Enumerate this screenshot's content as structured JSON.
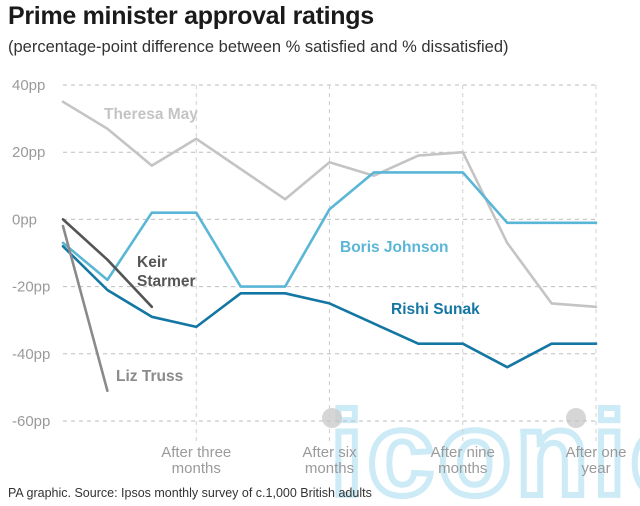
{
  "header": {
    "title": "Prime minister approval ratings",
    "subtitle": "(percentage-point difference between % satisfied and % dissatisfied)"
  },
  "footer": {
    "source": "PA graphic. Source: Ipsos monthly survey of c.1,000 British adults"
  },
  "watermark": {
    "text": "iconic"
  },
  "chart_data": {
    "type": "line",
    "title": "Prime minister approval ratings",
    "subtitle": "(percentage-point difference between % satisfied and % dissatisfied)",
    "ylim": [
      -60,
      40
    ],
    "xlim": [
      0,
      12
    ],
    "yticks": [
      40,
      20,
      0,
      -20,
      -40,
      -60
    ],
    "ytick_labels": [
      "40pp",
      "20pp",
      "0pp",
      "-20pp",
      "-40pp",
      "-60pp"
    ],
    "xticks": [
      {
        "x": 3,
        "lines": [
          "After three",
          "months"
        ]
      },
      {
        "x": 6,
        "lines": [
          "After six",
          "months"
        ]
      },
      {
        "x": 9,
        "lines": [
          "After nine",
          "months"
        ]
      },
      {
        "x": 12,
        "lines": [
          "After one",
          "year"
        ]
      }
    ],
    "grid": true,
    "legend": "inline labels",
    "series": [
      {
        "name": "Theresa May",
        "color": "#c4c4c4",
        "x": [
          0,
          1,
          2,
          3,
          4,
          5,
          6,
          7,
          8,
          9,
          10,
          11,
          12
        ],
        "y": [
          35,
          27,
          16,
          24,
          15,
          6,
          17,
          13,
          19,
          20,
          -7,
          -25,
          -26
        ]
      },
      {
        "name": "Boris Johnson",
        "color": "#5ab6d7",
        "x": [
          0,
          1,
          2,
          3,
          4,
          5,
          6,
          7,
          8,
          9,
          10,
          11,
          12
        ],
        "y": [
          -7,
          -18,
          2,
          2,
          -20,
          -20,
          3,
          14,
          14,
          14,
          -1,
          -1,
          -1
        ]
      },
      {
        "name": "Rishi Sunak",
        "color": "#1477a3",
        "x": [
          0,
          1,
          2,
          3,
          4,
          5,
          6,
          7,
          8,
          9,
          10,
          11,
          12
        ],
        "y": [
          -8,
          -21,
          -29,
          -32,
          -22,
          -22,
          -25,
          -31,
          -37,
          -37,
          -44,
          -37,
          -37
        ]
      },
      {
        "name": "Keir Starmer",
        "color": "#555555",
        "x": [
          0,
          1,
          2
        ],
        "y": [
          0,
          -12,
          -26
        ]
      },
      {
        "name": "Liz Truss",
        "color": "#8a8a8a",
        "x": [
          0,
          1
        ],
        "y": [
          -2,
          -51
        ]
      }
    ]
  }
}
